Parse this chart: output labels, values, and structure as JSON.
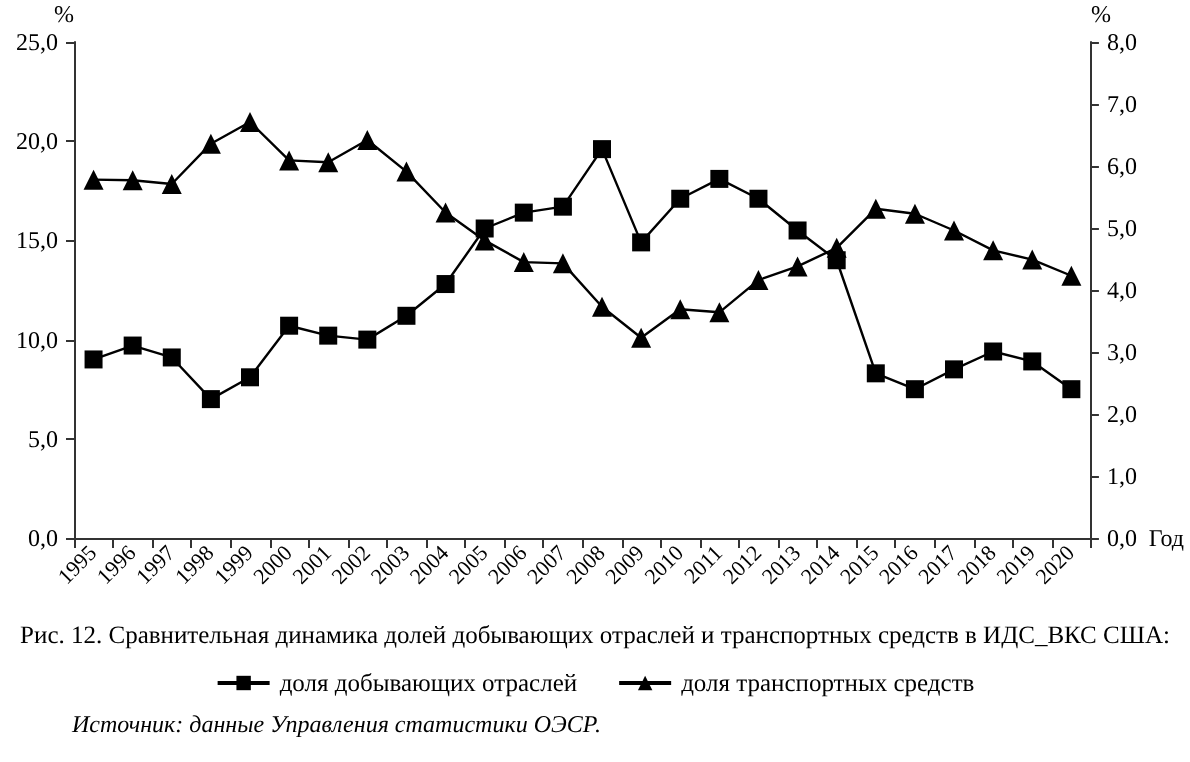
{
  "chart_data": {
    "type": "line",
    "title": "Рис. 12. Сравнительная динамика долей добывающих отраслей и транспортных средств в ИДС_ВКС США:",
    "xlabel": "Год",
    "ylabel": "%",
    "y2label": "%",
    "categories": [
      "1995",
      "1996",
      "1997",
      "1998",
      "1999",
      "2000",
      "2001",
      "2002",
      "2003",
      "2004",
      "2005",
      "2006",
      "2007",
      "2008",
      "2009",
      "2010",
      "2011",
      "2012",
      "2013",
      "2014",
      "2015",
      "2016",
      "2017",
      "2018",
      "2019",
      "2020"
    ],
    "series": [
      {
        "name": "доля добывающих отраслей",
        "color": "#000000",
        "marker": "square",
        "values": [
          9.0,
          9.7,
          9.1,
          7.0,
          8.1,
          10.7,
          10.2,
          10.0,
          11.2,
          12.8,
          15.6,
          16.4,
          16.7,
          19.6,
          14.9,
          17.1,
          18.1,
          17.1,
          15.5,
          14.0,
          8.3,
          7.5,
          8.5,
          9.4,
          8.9,
          7.5
        ]
      },
      {
        "name": "доля транспортных средств",
        "color": "#000000",
        "marker": "triangle",
        "axis": "y2",
        "values": [
          5.78,
          5.77,
          5.71,
          6.36,
          6.71,
          6.09,
          6.06,
          6.42,
          5.91,
          5.25,
          4.8,
          4.45,
          4.43,
          3.73,
          3.23,
          3.69,
          3.64,
          4.16,
          4.38,
          4.68,
          5.31,
          5.23,
          4.96,
          4.64,
          4.49,
          4.23
        ]
      }
    ],
    "ylim": [
      0,
      25
    ],
    "yticks": [
      {
        "value": 0,
        "label": "0,0"
      },
      {
        "value": 5,
        "label": "5,0"
      },
      {
        "value": 10,
        "label": "10,0"
      },
      {
        "value": 15,
        "label": "15,0"
      },
      {
        "value": 20,
        "label": "20,0"
      },
      {
        "value": 25,
        "label": "25,0"
      }
    ],
    "y2lim": [
      0,
      8
    ],
    "y2ticks": [
      {
        "value": 0,
        "label": "0,0"
      },
      {
        "value": 1,
        "label": "1,0"
      },
      {
        "value": 2,
        "label": "2,0"
      },
      {
        "value": 3,
        "label": "3,0"
      },
      {
        "value": 4,
        "label": "4,0"
      },
      {
        "value": 5,
        "label": "5,0"
      },
      {
        "value": 6,
        "label": "6,0"
      },
      {
        "value": 7,
        "label": "7,0"
      },
      {
        "value": 8,
        "label": "8,0"
      }
    ],
    "grid": false,
    "legend": "bottom",
    "line_style": "solid",
    "annotations": [
      "Источник: данные Управления статистики ОЭСР."
    ]
  }
}
